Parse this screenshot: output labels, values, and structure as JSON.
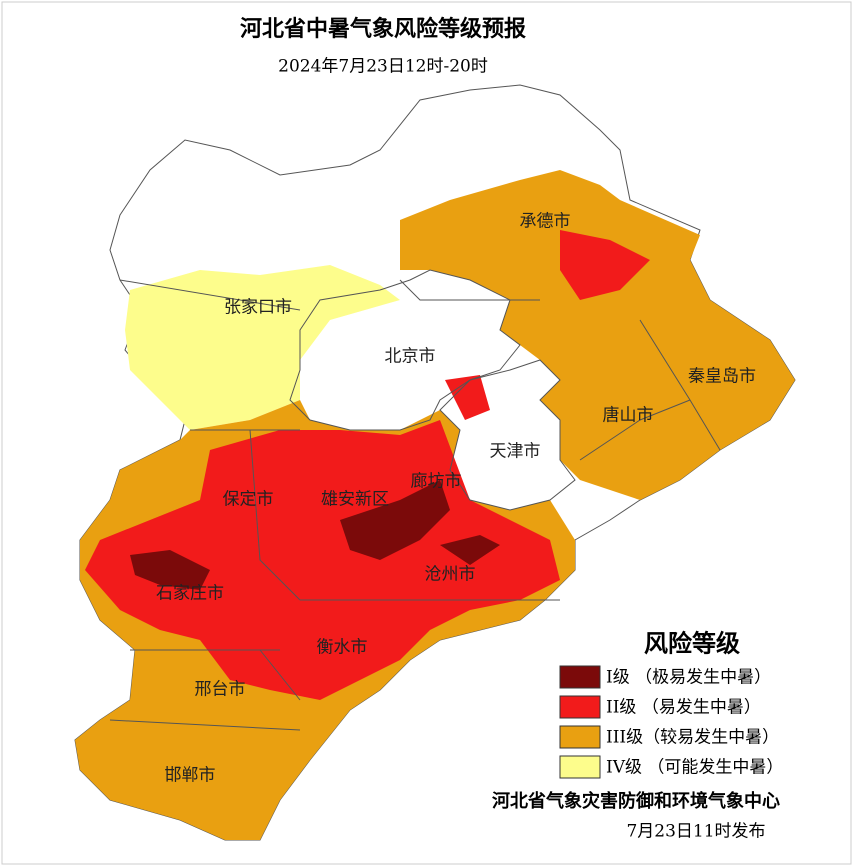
{
  "title": "河北省中暑气象风险等级预报",
  "subtitle": "2024年7月23日12时-20时",
  "cities": [
    "承德市",
    "张家口市",
    "北京市",
    "秦皇岛市",
    "唐山市",
    "天津市",
    "廊坊市",
    "保定市",
    "雄安新区",
    "沧州市",
    "石家庄市",
    "衡水市",
    "邢台市",
    "邯郸市"
  ],
  "legend": {
    "title": "风险等级",
    "items": [
      {
        "label": "I级 （极易发生中暑）",
        "color": "#7b0a0a"
      },
      {
        "label": "II级 （易发生中暑）",
        "color": "#f21b1b"
      },
      {
        "label": "III级（较易发生中暑）",
        "color": "#e9a011"
      },
      {
        "label": "IV级 （可能发生中暑）",
        "color": "#fdfd8c"
      }
    ]
  },
  "issuer": "河北省气象灾害防御和环境气象中心",
  "issued": "7月23日11时发布"
}
